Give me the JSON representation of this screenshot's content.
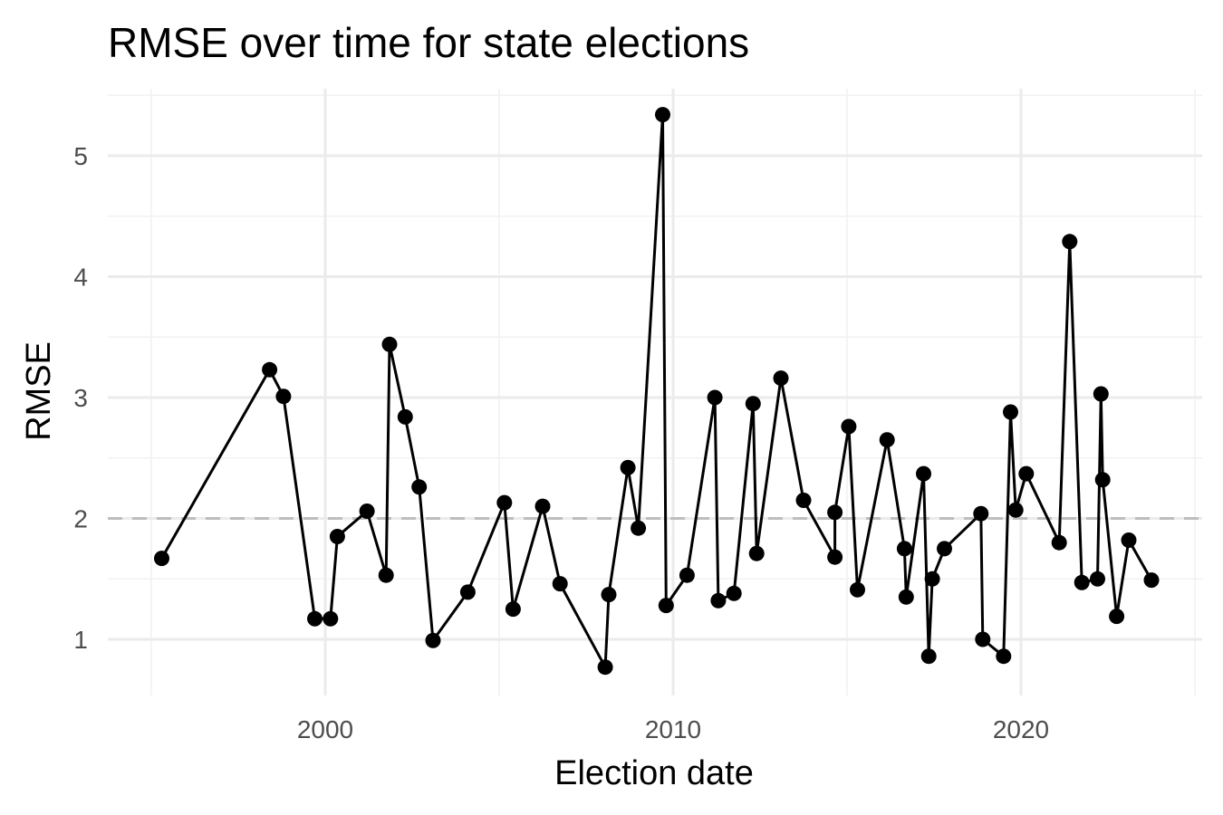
{
  "chart_data": {
    "type": "line",
    "title": "RMSE over time for state elections",
    "xlabel": "Election date",
    "ylabel": "RMSE",
    "x_ticks": [
      2000,
      2010,
      2020
    ],
    "y_ticks": [
      1,
      2,
      3,
      4,
      5
    ],
    "xlim": [
      1994.5,
      2025.5
    ],
    "ylim": [
      0.6,
      5.5
    ],
    "reference_line": {
      "y": 2,
      "style": "dashed"
    },
    "grid": true,
    "legend": "none",
    "series": [
      {
        "x": [
          1995.3,
          1998.4,
          1998.8,
          1999.7,
          2000.15,
          2000.35,
          2001.2,
          2001.75,
          2001.85,
          2002.3,
          2002.7,
          2003.1,
          2004.1,
          2005.15,
          2005.4,
          2006.25,
          2006.75,
          2008.05,
          2008.15,
          2008.7,
          2009.0,
          2009.7,
          2009.8,
          2010.4,
          2011.2,
          2011.3,
          2011.75,
          2012.3,
          2012.4,
          2013.1,
          2013.75,
          2014.65,
          2014.65,
          2015.05,
          2015.3,
          2016.15,
          2016.65,
          2016.7,
          2017.2,
          2017.35,
          2017.45,
          2017.8,
          2018.85,
          2018.9,
          2019.5,
          2019.7,
          2019.85,
          2020.15,
          2021.1,
          2021.4,
          2021.75,
          2022.2,
          2022.3,
          2022.35,
          2022.75,
          2023.1,
          2023.75
        ],
        "y": [
          1.67,
          3.23,
          3.01,
          1.17,
          1.17,
          1.85,
          2.06,
          1.53,
          3.44,
          2.84,
          2.26,
          0.99,
          1.39,
          2.13,
          1.25,
          2.1,
          1.46,
          0.77,
          1.37,
          2.42,
          1.92,
          5.34,
          1.28,
          1.53,
          3.0,
          1.32,
          1.38,
          2.95,
          1.71,
          3.16,
          2.15,
          1.68,
          2.05,
          2.76,
          1.41,
          2.65,
          1.75,
          1.35,
          2.37,
          0.86,
          1.5,
          1.75,
          2.04,
          1.0,
          0.86,
          2.88,
          2.07,
          2.37,
          1.8,
          4.29,
          1.47,
          1.5,
          3.03,
          2.32,
          1.19,
          1.82,
          1.49
        ]
      }
    ]
  }
}
